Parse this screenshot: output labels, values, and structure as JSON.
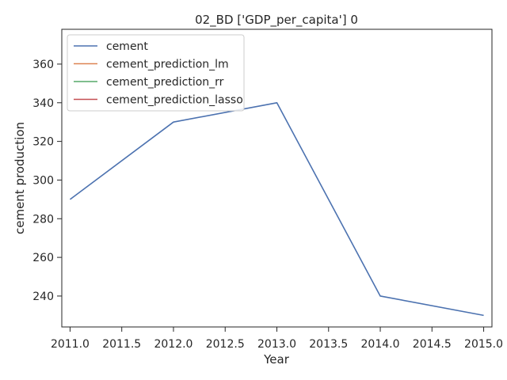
{
  "chart_data": {
    "type": "line",
    "title": "02_BD ['GDP_per_capita'] 0",
    "xlabel": "Year",
    "ylabel": "cement production",
    "xlim": [
      2010.92,
      2015.08
    ],
    "ylim": [
      224,
      378
    ],
    "xticks": [
      2011.0,
      2011.5,
      2012.0,
      2012.5,
      2013.0,
      2013.5,
      2014.0,
      2014.5,
      2015.0
    ],
    "xtick_labels": [
      "2011.0",
      "2011.5",
      "2012.0",
      "2012.5",
      "2013.0",
      "2013.5",
      "2014.0",
      "2014.5",
      "2015.0"
    ],
    "yticks": [
      240,
      260,
      280,
      300,
      320,
      340,
      360
    ],
    "ytick_labels": [
      "240",
      "260",
      "280",
      "300",
      "320",
      "340",
      "360"
    ],
    "grid": false,
    "legend_position": "top-left",
    "series": [
      {
        "name": "cement",
        "color": "#4c72b0",
        "x": [
          2011,
          2012,
          2013,
          2014,
          2015
        ],
        "y": [
          290,
          330,
          340,
          240,
          230
        ]
      },
      {
        "name": "cement_prediction_lm",
        "color": "#dd8452",
        "x": [],
        "y": []
      },
      {
        "name": "cement_prediction_rr",
        "color": "#55a868",
        "x": [],
        "y": []
      },
      {
        "name": "cement_prediction_lasso",
        "color": "#c44e52",
        "x": [],
        "y": []
      }
    ]
  }
}
